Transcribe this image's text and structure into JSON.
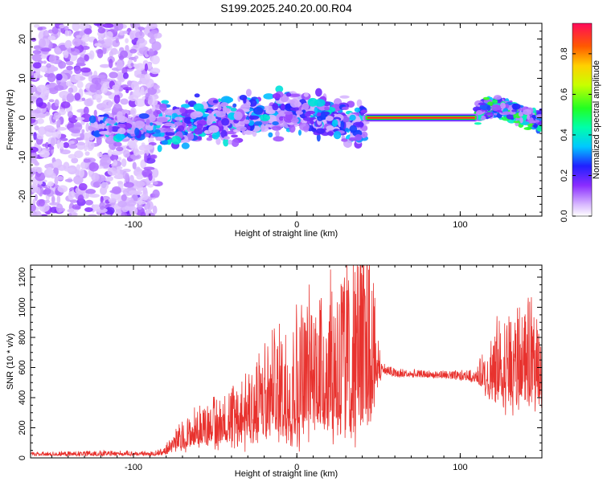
{
  "title": "S199.2025.240.20.00.R04",
  "chart_data": [
    {
      "type": "heatmap",
      "title": "S199.2025.240.20.00.R04",
      "xlabel": "Height of straight line (km)",
      "ylabel": "Frequency (Hz)",
      "xlim": [
        -163,
        150
      ],
      "ylim": [
        -25,
        24
      ],
      "xticks": [
        -100,
        0,
        100
      ],
      "yticks": [
        -20,
        -10,
        0,
        10,
        20
      ],
      "colorbar": {
        "label": "Normalized spectral amplitude",
        "range": [
          0,
          0.95
        ],
        "ticks": [
          0.0,
          0.2,
          0.4,
          0.6,
          0.8
        ]
      },
      "features": [
        {
          "name": "noise field",
          "x": [
            -163,
            -85
          ],
          "freq": [
            -25,
            24
          ],
          "amplitude": 0.08
        },
        {
          "name": "scattered band",
          "x": [
            -125,
            42
          ],
          "center_freq": [
            -2,
            2
          ],
          "amplitude": 0.25
        },
        {
          "name": "narrow tone",
          "x": [
            42,
            110
          ],
          "freq": 0,
          "amplitude": 0.95
        },
        {
          "name": "scattered band",
          "x": [
            110,
            150
          ],
          "center_freq": [
            0,
            3
          ],
          "amplitude": 0.45
        }
      ]
    },
    {
      "type": "line",
      "xlabel": "Height of straight line (km)",
      "ylabel": "SNR (10 * v/v)",
      "xlim": [
        -163,
        150
      ],
      "ylim": [
        0,
        1280
      ],
      "xticks": [
        -100,
        0,
        100
      ],
      "yticks": [
        0,
        200,
        400,
        600,
        800,
        1000,
        1200
      ],
      "series": [
        {
          "name": "SNR",
          "color": "#e8322e",
          "x": [
            -163,
            -140,
            -120,
            -100,
            -90,
            -82,
            -75,
            -65,
            -55,
            -45,
            -35,
            -25,
            -15,
            -5,
            5,
            15,
            25,
            35,
            45,
            52,
            60,
            70,
            80,
            90,
            100,
            110,
            115,
            120,
            130,
            140,
            150
          ],
          "mean": [
            20,
            20,
            22,
            22,
            20,
            30,
            70,
            110,
            130,
            150,
            180,
            230,
            260,
            300,
            330,
            380,
            400,
            430,
            450,
            570,
            550,
            545,
            540,
            540,
            530,
            520,
            480,
            460,
            470,
            470,
            480
          ],
          "spread": [
            12,
            14,
            16,
            15,
            12,
            25,
            70,
            120,
            160,
            180,
            230,
            300,
            350,
            420,
            460,
            520,
            560,
            580,
            600,
            40,
            30,
            25,
            25,
            25,
            30,
            40,
            160,
            260,
            320,
            340,
            320
          ],
          "peak_x": 43,
          "peak_y": 1280
        }
      ]
    }
  ]
}
